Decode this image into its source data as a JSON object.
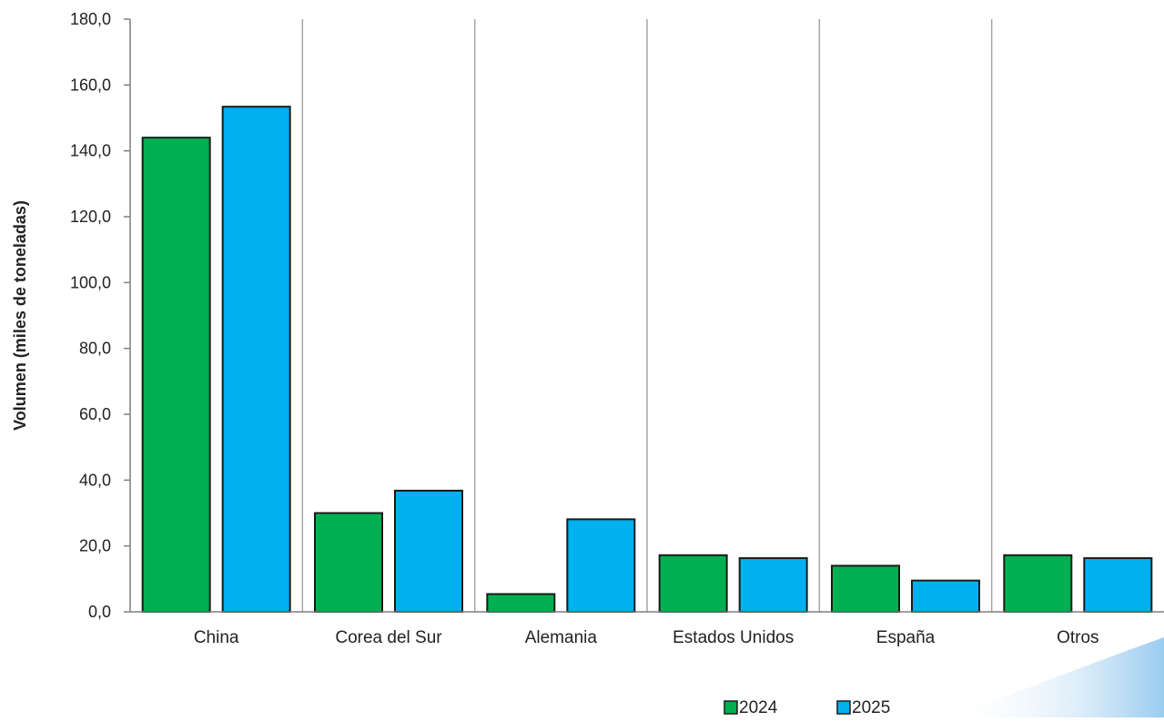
{
  "chart_data": {
    "type": "bar",
    "title": "",
    "xlabel": "",
    "ylabel": "Volumen  (miles de toneladas)",
    "ylim": [
      0,
      180
    ],
    "yticks": [
      "0,0",
      "20,0",
      "40,0",
      "60,0",
      "80,0",
      "100,0",
      "120,0",
      "140,0",
      "160,0",
      "180,0"
    ],
    "categories": [
      "China",
      "Corea del Sur",
      "Alemania",
      "Estados Unidos",
      "España",
      "Otros"
    ],
    "series": [
      {
        "name": "2024",
        "color": "#00b050",
        "values": [
          144.0,
          30.0,
          5.4,
          17.2,
          14.0,
          17.2
        ]
      },
      {
        "name": "2025",
        "color": "#00b0f0",
        "values": [
          153.4,
          36.8,
          28.1,
          16.3,
          9.5,
          16.3
        ]
      }
    ],
    "grid": "vertical separators between categories",
    "legend_position": "bottom-right"
  }
}
